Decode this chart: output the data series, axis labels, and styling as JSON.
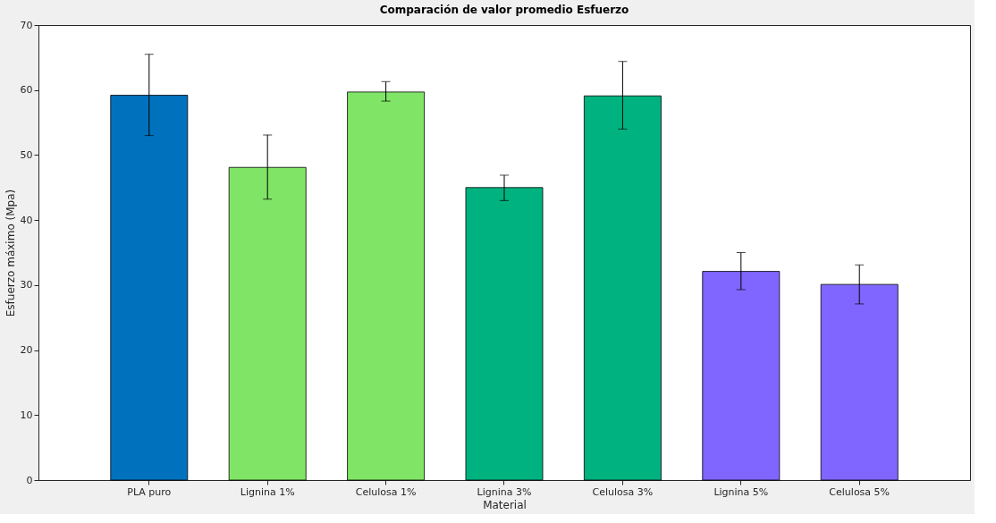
{
  "chart_data": {
    "type": "bar",
    "title": "Comparación de valor promedio Esfuerzo",
    "xlabel": "Material",
    "ylabel": "Esfuerzo máximo (Mpa)",
    "categories": [
      "PLA puro",
      "Lignina 1%",
      "Celulosa 1%",
      "Lignina 3%",
      "Celulosa 3%",
      "Lignina 5%",
      "Celulosa 5%"
    ],
    "values": [
      59.2,
      48.1,
      59.7,
      45.0,
      59.1,
      32.1,
      30.1
    ],
    "colors": [
      "#0072bd",
      "#80e566",
      "#80e566",
      "#00b27f",
      "#00b27f",
      "#8066ff",
      "#8066ff"
    ],
    "errors": [
      [
        53.0,
        65.5
      ],
      [
        43.2,
        53.1
      ],
      [
        58.3,
        61.3
      ],
      [
        43.0,
        46.9
      ],
      [
        54.0,
        64.4
      ],
      [
        29.3,
        35.0
      ],
      [
        27.1,
        33.1
      ]
    ],
    "ylim": [
      0,
      70
    ],
    "yticks": [
      0,
      10,
      20,
      30,
      40,
      50,
      60,
      70
    ],
    "grid": false
  }
}
